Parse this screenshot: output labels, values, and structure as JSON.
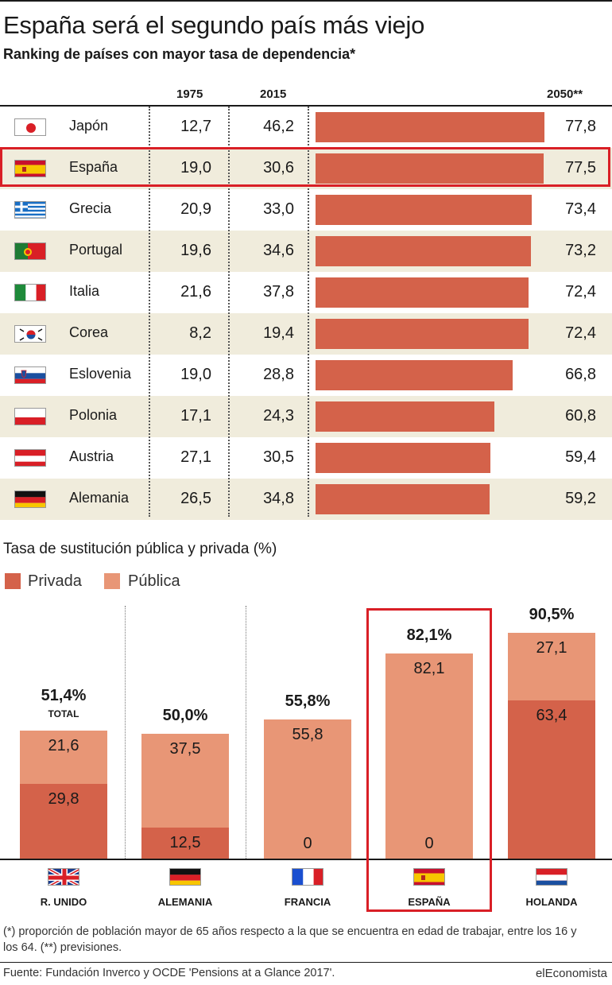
{
  "title": "España será el segundo país más viejo",
  "subtitle": "Ranking de países con mayor tasa de dependencia*",
  "ranking": {
    "headers": {
      "y1975": "1975",
      "y2015": "2015",
      "y2050": "2050**"
    },
    "rows": [
      {
        "country": "Japón",
        "flag": "japan",
        "v1975": "12,7",
        "v2015": "46,2",
        "v2050": "77,8",
        "v2050_num": 77.8
      },
      {
        "country": "España",
        "flag": "spain",
        "v1975": "19,0",
        "v2015": "30,6",
        "v2050": "77,5",
        "v2050_num": 77.5
      },
      {
        "country": "Grecia",
        "flag": "greece",
        "v1975": "20,9",
        "v2015": "33,0",
        "v2050": "73,4",
        "v2050_num": 73.4
      },
      {
        "country": "Portugal",
        "flag": "portugal",
        "v1975": "19,6",
        "v2015": "34,6",
        "v2050": "73,2",
        "v2050_num": 73.2
      },
      {
        "country": "Italia",
        "flag": "italy",
        "v1975": "21,6",
        "v2015": "37,8",
        "v2050": "72,4",
        "v2050_num": 72.4
      },
      {
        "country": "Corea",
        "flag": "korea",
        "v1975": "8,2",
        "v2015": "19,4",
        "v2050": "72,4",
        "v2050_num": 72.4
      },
      {
        "country": "Eslovenia",
        "flag": "slovenia",
        "v1975": "19,0",
        "v2015": "28,8",
        "v2050": "66,8",
        "v2050_num": 66.8
      },
      {
        "country": "Polonia",
        "flag": "poland",
        "v1975": "17,1",
        "v2015": "24,3",
        "v2050": "60,8",
        "v2050_num": 60.8
      },
      {
        "country": "Austria",
        "flag": "austria",
        "v1975": "27,1",
        "v2015": "30,5",
        "v2050": "59,4",
        "v2050_num": 59.4
      },
      {
        "country": "Alemania",
        "flag": "germany",
        "v1975": "26,5",
        "v2015": "34,8",
        "v2050": "59,2",
        "v2050_num": 59.2
      }
    ]
  },
  "replacement": {
    "title": "Tasa de sustitución pública y privada (%)",
    "legend": {
      "private": "Privada",
      "public": "Pública"
    },
    "total_label": "TOTAL",
    "countries": [
      {
        "name": "R. UNIDO",
        "flag": "uk",
        "total": "51,4%",
        "private": "29,8",
        "public": "21,6"
      },
      {
        "name": "ALEMANIA",
        "flag": "germany",
        "total": "50,0%",
        "private": "12,5",
        "public": "37,5"
      },
      {
        "name": "FRANCIA",
        "flag": "france",
        "total": "55,8%",
        "private": "0",
        "public": "55,8"
      },
      {
        "name": "ESPAÑA",
        "flag": "spain",
        "total": "82,1%",
        "private": "0",
        "public": "82,1"
      },
      {
        "name": "HOLANDA",
        "flag": "netherlands",
        "total": "90,5%",
        "private": "63,4",
        "public": "27,1"
      }
    ]
  },
  "chart_data": [
    {
      "type": "bar",
      "title": "Ranking de países con mayor tasa de dependencia*",
      "categories": [
        "Japón",
        "España",
        "Grecia",
        "Portugal",
        "Italia",
        "Corea",
        "Eslovenia",
        "Polonia",
        "Austria",
        "Alemania"
      ],
      "series": [
        {
          "name": "1975",
          "values": [
            12.7,
            19.0,
            20.9,
            19.6,
            21.6,
            8.2,
            19.0,
            17.1,
            27.1,
            26.5
          ]
        },
        {
          "name": "2015",
          "values": [
            46.2,
            30.6,
            33.0,
            34.6,
            37.8,
            19.4,
            28.8,
            24.3,
            30.5,
            34.8
          ]
        },
        {
          "name": "2050**",
          "values": [
            77.8,
            77.5,
            73.4,
            73.2,
            72.4,
            72.4,
            66.8,
            60.8,
            59.4,
            59.2
          ]
        }
      ]
    },
    {
      "type": "bar",
      "title": "Tasa de sustitución pública y privada (%)",
      "categories": [
        "R. UNIDO",
        "ALEMANIA",
        "FRANCIA",
        "ESPAÑA",
        "HOLANDA"
      ],
      "series": [
        {
          "name": "Privada",
          "values": [
            29.8,
            12.5,
            0,
            0,
            63.4
          ]
        },
        {
          "name": "Pública",
          "values": [
            21.6,
            37.5,
            55.8,
            82.1,
            27.1
          ]
        }
      ],
      "totals": [
        51.4,
        50.0,
        55.8,
        82.1,
        90.5
      ]
    }
  ],
  "footnote": "(*) proporción de población mayor de 65 años respecto a la que se encuentra en edad de trabajar, entre los 16 y los 64. (**) previsiones.",
  "source": "Fuente: Fundación Inverco y OCDE 'Pensions at a Glance 2017'.",
  "brand": "elEconomista",
  "colors": {
    "bar": "#d4624a",
    "private": "#d4624a",
    "public": "#e89676",
    "highlight": "#d91f26",
    "alt_row": "#f0ecdc"
  }
}
